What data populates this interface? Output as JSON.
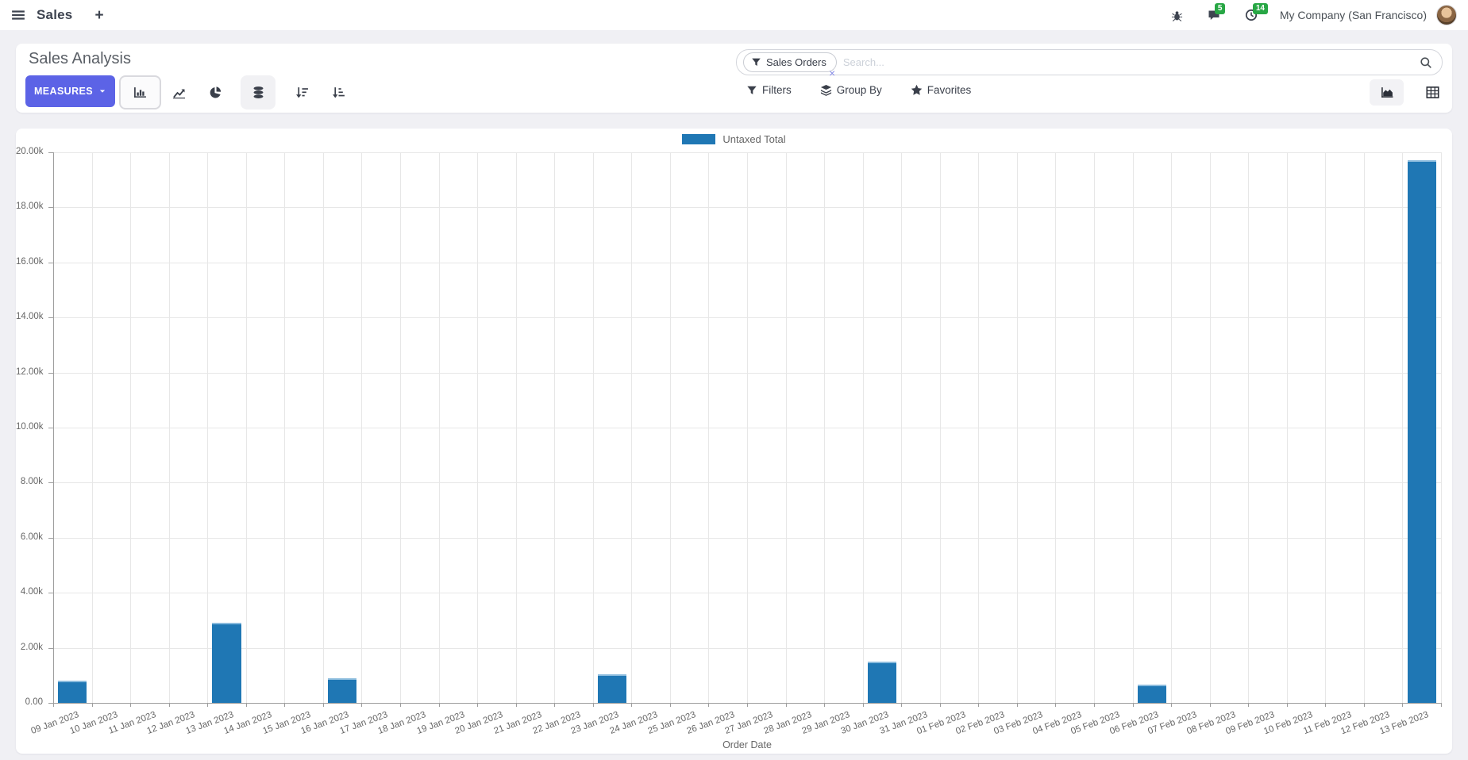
{
  "navbar": {
    "app_label": "Sales",
    "new_tab_label": "+",
    "messages_badge": "5",
    "activities_badge": "14",
    "company": "My Company (San Francisco)"
  },
  "control_panel": {
    "title": "Sales Analysis",
    "measures_label": "MEASURES",
    "search": {
      "facet_label": "Sales Orders",
      "facet_remove_label": "×",
      "placeholder": "Search..."
    },
    "filters_label": "Filters",
    "group_by_label": "Group By",
    "favorites_label": "Favorites"
  },
  "icons": {
    "navbar": [
      "menu-icon",
      "plus-icon",
      "bug-icon",
      "chat-icon",
      "clock-icon"
    ],
    "chart_types": [
      "bar-chart-icon",
      "line-chart-icon",
      "pie-chart-icon",
      "stacked-icon",
      "sort-desc-icon",
      "sort-asc-icon"
    ],
    "search": [
      "filter-icon",
      "search-icon"
    ],
    "filter_bar": [
      "filter-icon",
      "layers-icon",
      "star-icon"
    ],
    "view_switcher": [
      "area-chart-icon",
      "pivot-icon"
    ]
  },
  "colors": {
    "accent": "#5C63E6",
    "bar": "#1f77b4",
    "badge_green": "#28a745"
  },
  "chart_data": {
    "type": "bar",
    "legend": [
      "Untaxed Total"
    ],
    "legend_position": "top",
    "grid": true,
    "xlabel": "Order Date",
    "ylabel": "",
    "ylim": [
      0,
      20000
    ],
    "y_ticks": [
      "0.00",
      "2.00k",
      "4.00k",
      "6.00k",
      "8.00k",
      "10.00k",
      "12.00k",
      "14.00k",
      "16.00k",
      "18.00k",
      "20.00k"
    ],
    "categories": [
      "09 Jan 2023",
      "10 Jan 2023",
      "11 Jan 2023",
      "12 Jan 2023",
      "13 Jan 2023",
      "14 Jan 2023",
      "15 Jan 2023",
      "16 Jan 2023",
      "17 Jan 2023",
      "18 Jan 2023",
      "19 Jan 2023",
      "20 Jan 2023",
      "21 Jan 2023",
      "22 Jan 2023",
      "23 Jan 2023",
      "24 Jan 2023",
      "25 Jan 2023",
      "26 Jan 2023",
      "27 Jan 2023",
      "28 Jan 2023",
      "29 Jan 2023",
      "30 Jan 2023",
      "31 Jan 2023",
      "01 Feb 2023",
      "02 Feb 2023",
      "03 Feb 2023",
      "04 Feb 2023",
      "05 Feb 2023",
      "06 Feb 2023",
      "07 Feb 2023",
      "08 Feb 2023",
      "09 Feb 2023",
      "10 Feb 2023",
      "11 Feb 2023",
      "12 Feb 2023",
      "13 Feb 2023"
    ],
    "values": [
      800,
      0,
      0,
      0,
      2900,
      0,
      0,
      900,
      0,
      0,
      0,
      0,
      0,
      0,
      1050,
      0,
      0,
      0,
      0,
      0,
      0,
      1500,
      0,
      0,
      0,
      0,
      0,
      0,
      650,
      0,
      0,
      0,
      0,
      0,
      0,
      19700
    ]
  }
}
